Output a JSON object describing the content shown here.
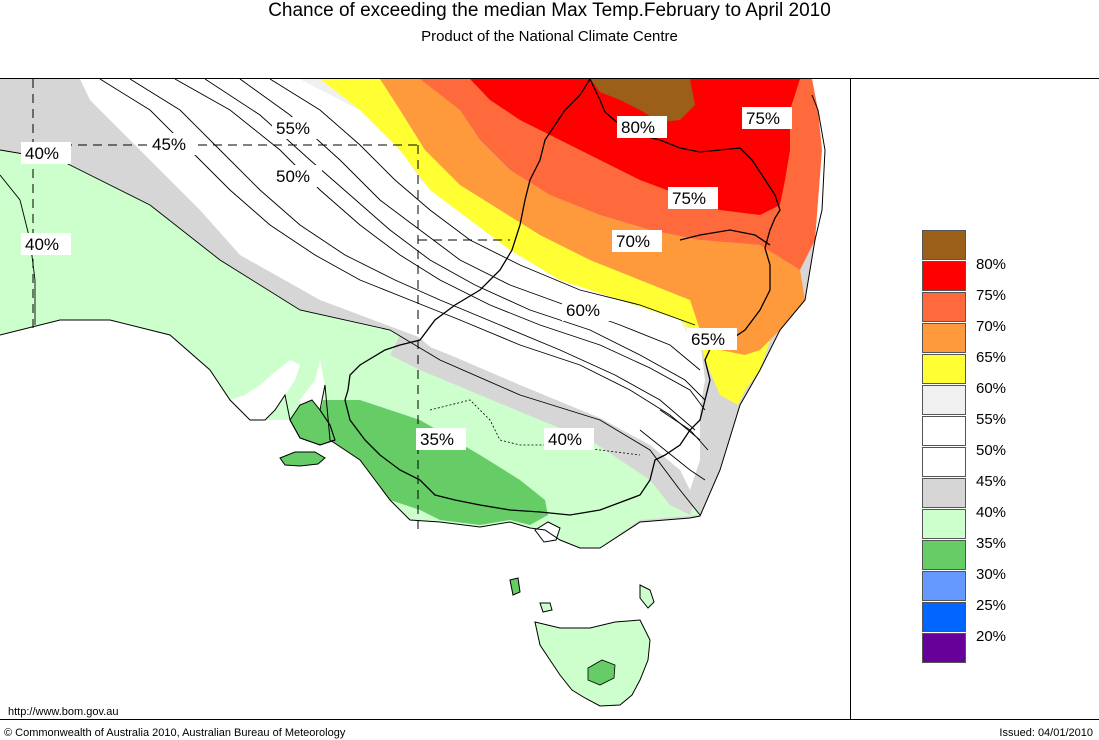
{
  "header": {
    "title": "Chance of exceeding the median Max Temp.February to April 2010",
    "subtitle": "Product of the National Climate Centre"
  },
  "map": {
    "region": "South-eastern Australia",
    "contour_labels": [
      "40%",
      "45%",
      "55%",
      "50%",
      "40%",
      "80%",
      "75%",
      "75%",
      "70%",
      "60%",
      "65%",
      "35%",
      "40%"
    ]
  },
  "legend": {
    "items": [
      {
        "label": "80%",
        "color": "#9b5f1a"
      },
      {
        "label": "75%",
        "color": "#ff0000"
      },
      {
        "label": "70%",
        "color": "#ff6a3d"
      },
      {
        "label": "65%",
        "color": "#ff9a3c"
      },
      {
        "label": "60%",
        "color": "#ffff33"
      },
      {
        "label": "55%",
        "color": "#f0f0f0"
      },
      {
        "label": "50%",
        "color": "#ffffff"
      },
      {
        "label": "45%",
        "color": "#ffffff"
      },
      {
        "label": "40%",
        "color": "#d6d6d6"
      },
      {
        "label": "35%",
        "color": "#ccffcc"
      },
      {
        "label": "30%",
        "color": "#66cc66"
      },
      {
        "label": "25%",
        "color": "#6699ff"
      },
      {
        "label": "20%",
        "color": "#0066ff"
      },
      {
        "label": "",
        "color": "#660099"
      }
    ]
  },
  "footer": {
    "url": "http://www.bom.gov.au",
    "copyright": "© Commonwealth of Australia 2010, Australian Bureau of Meteorology",
    "issued": "Issued: 04/01/2010"
  }
}
